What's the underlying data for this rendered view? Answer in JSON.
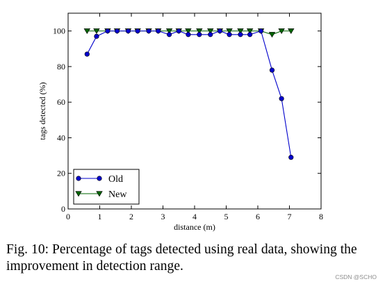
{
  "chart_data": {
    "type": "line",
    "xlabel": "distance (m)",
    "ylabel": "tags detected (%)",
    "xlim": [
      0,
      8
    ],
    "ylim": [
      0,
      110
    ],
    "xticks": [
      0,
      1,
      2,
      3,
      4,
      5,
      6,
      7,
      8
    ],
    "yticks": [
      0,
      20,
      40,
      60,
      80,
      100
    ],
    "x_tick_labels": [
      "0",
      "1",
      "2",
      "3",
      "4",
      "5",
      "6",
      "7",
      "8"
    ],
    "y_tick_labels": [
      "0",
      "20",
      "40",
      "60",
      "80",
      "100"
    ],
    "grid": false,
    "legend_position": "bottom-left",
    "series": [
      {
        "name": "Old",
        "color": "#0000cc",
        "marker": "circle",
        "x": [
          0.6,
          0.9,
          1.25,
          1.55,
          1.9,
          2.2,
          2.55,
          2.85,
          3.2,
          3.5,
          3.8,
          4.15,
          4.5,
          4.8,
          5.1,
          5.45,
          5.75,
          6.1,
          6.45,
          6.75,
          7.05
        ],
        "y": [
          87,
          97,
          100,
          100,
          100,
          100,
          100,
          100,
          98,
          100,
          98,
          98,
          98,
          100,
          98,
          98,
          98,
          100,
          78,
          62,
          29
        ]
      },
      {
        "name": "New",
        "color": "#006400",
        "marker": "triangle-down",
        "x": [
          0.6,
          0.9,
          1.25,
          1.55,
          1.9,
          2.2,
          2.55,
          2.85,
          3.2,
          3.5,
          3.8,
          4.15,
          4.5,
          4.8,
          5.1,
          5.45,
          5.75,
          6.1,
          6.45,
          6.75,
          7.05
        ],
        "y": [
          100,
          100,
          100,
          100,
          100,
          100,
          100,
          100,
          100,
          100,
          100,
          100,
          100,
          100,
          100,
          100,
          100,
          100,
          98,
          100,
          100
        ]
      }
    ]
  },
  "caption": "Fig. 10: Percentage of tags detected using real data, showing the improvement in detection range.",
  "watermark": "CSDN @SCHO"
}
